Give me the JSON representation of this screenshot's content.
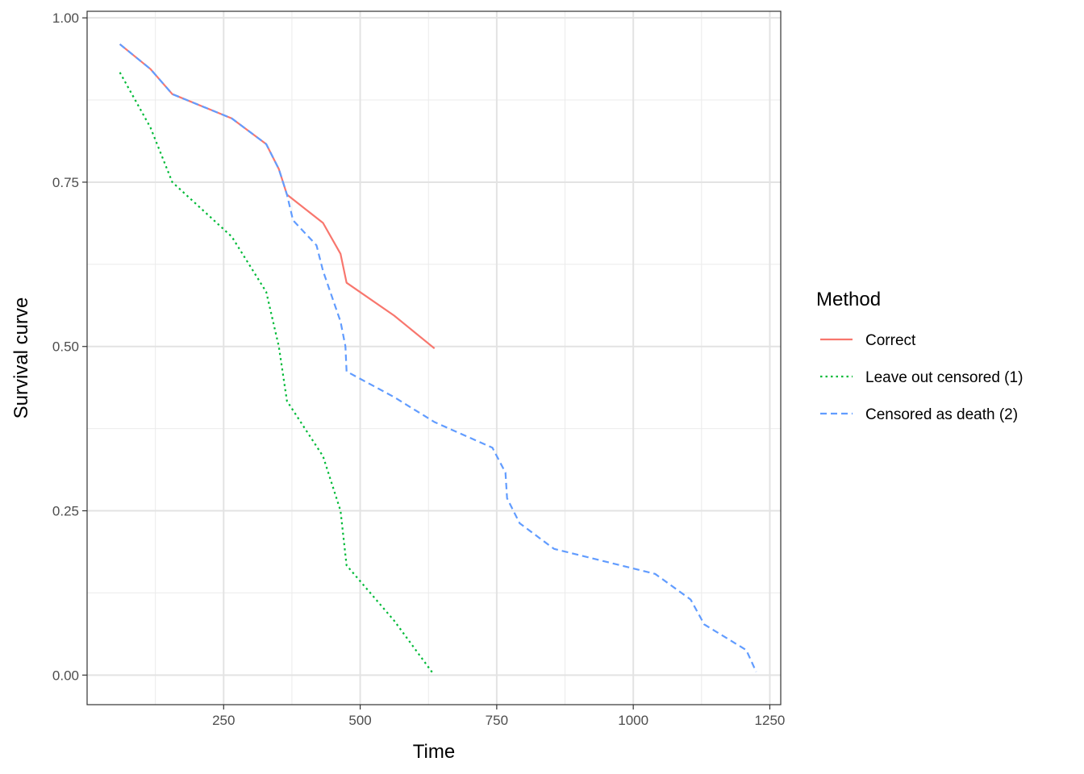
{
  "chart_data": {
    "type": "line",
    "xlabel": "Time",
    "ylabel": "Survival curve",
    "xlim": [
      0,
      1270
    ],
    "ylim": [
      -0.045,
      1.01
    ],
    "x_ticks": [
      250,
      500,
      750,
      1000,
      1250
    ],
    "x_tick_labels": [
      "250",
      "500",
      "750",
      "1000",
      "1250"
    ],
    "y_ticks": [
      0,
      0.25,
      0.5,
      0.75,
      1.0
    ],
    "y_tick_labels": [
      "0.00",
      "0.25",
      "0.50",
      "0.75",
      "1.00"
    ],
    "grid": true,
    "legend": {
      "title": "Method",
      "position": "right"
    },
    "series": [
      {
        "name": "Correct",
        "color": "#F8766D",
        "dash": "solid",
        "x": [
          60,
          116,
          156,
          265,
          328,
          351,
          366,
          432,
          464,
          475,
          562,
          636
        ],
        "y": [
          0.96,
          0.922,
          0.884,
          0.847,
          0.808,
          0.77,
          0.731,
          0.688,
          0.641,
          0.597,
          0.547,
          0.497
        ]
      },
      {
        "name": "Leave out censored (1)",
        "color": "#00BA38",
        "dash": "dotted",
        "x": [
          60,
          116,
          156,
          265,
          328,
          351,
          366,
          432,
          464,
          475,
          562,
          633
        ],
        "y": [
          0.917,
          0.833,
          0.75,
          0.667,
          0.583,
          0.5,
          0.417,
          0.333,
          0.25,
          0.167,
          0.083,
          0.003
        ]
      },
      {
        "name": "Censored as death (2)",
        "color": "#619CFF",
        "dash": "dashed",
        "x": [
          60,
          116,
          156,
          265,
          328,
          351,
          366,
          377,
          420,
          432,
          464,
          473,
          475,
          562,
          636,
          742,
          766,
          769,
          792,
          855,
          1040,
          1105,
          1130,
          1207,
          1225
        ],
        "y": [
          0.96,
          0.922,
          0.884,
          0.847,
          0.808,
          0.77,
          0.731,
          0.692,
          0.654,
          0.615,
          0.538,
          0.5,
          0.462,
          0.423,
          0.385,
          0.346,
          0.308,
          0.269,
          0.231,
          0.192,
          0.154,
          0.115,
          0.077,
          0.038,
          0.005
        ]
      }
    ]
  }
}
